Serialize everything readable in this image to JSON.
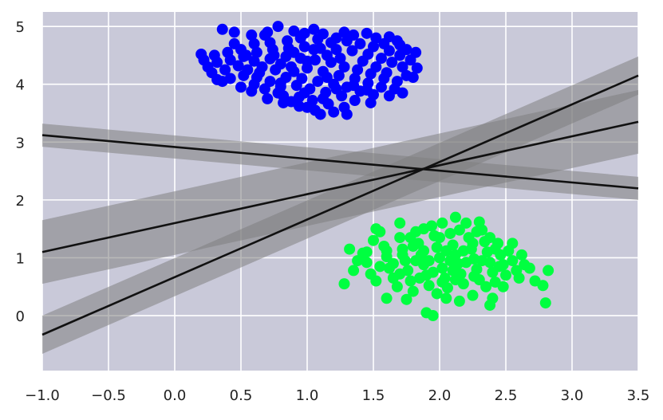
{
  "chart_data": {
    "type": "scatter",
    "title": "",
    "xlabel": "",
    "ylabel": "",
    "xlim": [
      -1.0,
      3.5
    ],
    "ylim": [
      -0.95,
      5.25
    ],
    "grid": true,
    "legend": "none",
    "x_ticks": [
      -1.0,
      -0.5,
      0.0,
      0.5,
      1.0,
      1.5,
      2.0,
      2.5,
      3.0,
      3.5
    ],
    "x_tick_labels": [
      "−1.0",
      "−0.5",
      "0.0",
      "0.5",
      "1.0",
      "1.5",
      "2.0",
      "2.5",
      "3.0",
      "3.5"
    ],
    "y_ticks": [
      0,
      1,
      2,
      3,
      4,
      5
    ],
    "y_tick_labels": [
      "0",
      "1",
      "2",
      "3",
      "4",
      "5"
    ],
    "colors": {
      "plot_background": "#c9c9d9",
      "grid": "#ffffff",
      "cluster_a": "#0000ff",
      "cluster_b": "#00ff40",
      "line": "#111111",
      "band": "#808080"
    },
    "series": [
      {
        "kind": "scatter",
        "color": "#0000ff",
        "points": [
          [
            0.36,
            4.95
          ],
          [
            0.45,
            4.9
          ],
          [
            0.58,
            4.85
          ],
          [
            0.7,
            4.9
          ],
          [
            0.78,
            5.0
          ],
          [
            0.9,
            4.92
          ],
          [
            0.98,
            4.88
          ],
          [
            1.05,
            4.95
          ],
          [
            1.12,
            4.87
          ],
          [
            1.22,
            4.8
          ],
          [
            1.35,
            4.85
          ],
          [
            1.45,
            4.88
          ],
          [
            1.52,
            4.8
          ],
          [
            1.58,
            4.7
          ],
          [
            1.68,
            4.75
          ],
          [
            1.75,
            4.6
          ],
          [
            1.82,
            4.55
          ],
          [
            1.7,
            4.5
          ],
          [
            1.62,
            4.58
          ],
          [
            1.5,
            4.65
          ],
          [
            1.4,
            4.7
          ],
          [
            1.3,
            4.75
          ],
          [
            1.18,
            4.72
          ],
          [
            1.08,
            4.78
          ],
          [
            0.95,
            4.8
          ],
          [
            0.85,
            4.75
          ],
          [
            0.72,
            4.72
          ],
          [
            0.6,
            4.7
          ],
          [
            0.5,
            4.6
          ],
          [
            0.4,
            4.55
          ],
          [
            0.3,
            4.5
          ],
          [
            0.2,
            4.52
          ],
          [
            0.22,
            4.42
          ],
          [
            0.32,
            4.38
          ],
          [
            0.42,
            4.42
          ],
          [
            0.52,
            4.48
          ],
          [
            0.62,
            4.55
          ],
          [
            0.74,
            4.6
          ],
          [
            0.86,
            4.62
          ],
          [
            0.98,
            4.65
          ],
          [
            1.1,
            4.62
          ],
          [
            1.22,
            4.6
          ],
          [
            1.34,
            4.58
          ],
          [
            1.46,
            4.52
          ],
          [
            1.56,
            4.45
          ],
          [
            1.64,
            4.38
          ],
          [
            1.72,
            4.3
          ],
          [
            1.83,
            4.28
          ],
          [
            1.75,
            4.15
          ],
          [
            1.68,
            4.05
          ],
          [
            1.58,
            4.1
          ],
          [
            1.48,
            4.18
          ],
          [
            1.38,
            4.25
          ],
          [
            1.28,
            4.3
          ],
          [
            1.18,
            4.38
          ],
          [
            1.06,
            4.42
          ],
          [
            0.95,
            4.45
          ],
          [
            0.84,
            4.48
          ],
          [
            0.72,
            4.44
          ],
          [
            0.6,
            4.4
          ],
          [
            0.48,
            4.32
          ],
          [
            0.38,
            4.25
          ],
          [
            0.28,
            4.2
          ],
          [
            0.32,
            4.08
          ],
          [
            0.42,
            4.1
          ],
          [
            0.52,
            4.15
          ],
          [
            0.64,
            4.2
          ],
          [
            0.76,
            4.25
          ],
          [
            0.88,
            4.3
          ],
          [
            1.0,
            4.28
          ],
          [
            1.12,
            4.22
          ],
          [
            1.24,
            4.15
          ],
          [
            1.36,
            4.1
          ],
          [
            1.46,
            4.02
          ],
          [
            1.56,
            3.95
          ],
          [
            1.66,
            3.92
          ],
          [
            1.72,
            3.85
          ],
          [
            1.62,
            3.8
          ],
          [
            1.5,
            3.82
          ],
          [
            1.4,
            3.88
          ],
          [
            1.3,
            3.95
          ],
          [
            1.2,
            4.0
          ],
          [
            1.08,
            4.05
          ],
          [
            0.96,
            4.1
          ],
          [
            0.84,
            4.12
          ],
          [
            0.72,
            4.05
          ],
          [
            0.6,
            4.0
          ],
          [
            0.5,
            3.95
          ],
          [
            0.58,
            3.88
          ],
          [
            0.68,
            3.92
          ],
          [
            0.8,
            3.96
          ],
          [
            0.92,
            3.98
          ],
          [
            1.02,
            3.92
          ],
          [
            1.14,
            3.86
          ],
          [
            1.26,
            3.8
          ],
          [
            1.36,
            3.72
          ],
          [
            1.48,
            3.68
          ],
          [
            1.28,
            3.6
          ],
          [
            1.16,
            3.66
          ],
          [
            1.04,
            3.72
          ],
          [
            0.94,
            3.78
          ],
          [
            0.82,
            3.8
          ],
          [
            0.7,
            3.75
          ],
          [
            0.82,
            3.68
          ],
          [
            0.94,
            3.62
          ],
          [
            1.06,
            3.55
          ],
          [
            1.1,
            3.48
          ],
          [
            1.3,
            3.48
          ],
          [
            1.2,
            3.52
          ],
          [
            0.88,
            3.7
          ],
          [
            0.78,
            3.85
          ],
          [
            1.0,
            3.6
          ],
          [
            1.12,
            3.75
          ],
          [
            0.66,
            4.3
          ],
          [
            0.9,
            4.55
          ],
          [
            1.15,
            4.5
          ],
          [
            1.42,
            4.4
          ],
          [
            0.55,
            4.25
          ],
          [
            0.25,
            4.3
          ],
          [
            0.45,
            4.7
          ],
          [
            0.68,
            4.85
          ],
          [
            1.28,
            4.9
          ],
          [
            1.62,
            4.82
          ],
          [
            1.78,
            4.42
          ],
          [
            1.8,
            4.12
          ],
          [
            1.0,
            4.4
          ],
          [
            0.8,
            4.35
          ],
          [
            1.25,
            4.45
          ],
          [
            0.62,
            4.12
          ],
          [
            1.35,
            3.98
          ],
          [
            0.98,
            3.85
          ],
          [
            1.52,
            4.3
          ],
          [
            0.36,
            4.05
          ],
          [
            1.7,
            4.68
          ],
          [
            0.8,
            4.02
          ],
          [
            1.45,
            3.9
          ],
          [
            1.15,
            4.12
          ],
          [
            0.9,
            4.22
          ],
          [
            0.54,
            4.5
          ],
          [
            1.22,
            3.92
          ],
          [
            1.05,
            4.6
          ],
          [
            0.75,
            4.5
          ],
          [
            1.6,
            4.2
          ]
        ]
      },
      {
        "kind": "scatter",
        "color": "#00ff40",
        "points": [
          [
            1.28,
            0.55
          ],
          [
            1.35,
            0.78
          ],
          [
            1.32,
            1.15
          ],
          [
            1.42,
            1.08
          ],
          [
            1.45,
            0.92
          ],
          [
            1.48,
            0.72
          ],
          [
            1.52,
            0.6
          ],
          [
            1.5,
            1.3
          ],
          [
            1.55,
            1.45
          ],
          [
            1.58,
            1.2
          ],
          [
            1.6,
            1.02
          ],
          [
            1.62,
            0.82
          ],
          [
            1.65,
            0.65
          ],
          [
            1.68,
            0.5
          ],
          [
            1.7,
            1.35
          ],
          [
            1.72,
            1.15
          ],
          [
            1.74,
            0.95
          ],
          [
            1.76,
            0.78
          ],
          [
            1.78,
            0.6
          ],
          [
            1.8,
            0.42
          ],
          [
            1.82,
            1.45
          ],
          [
            1.84,
            1.25
          ],
          [
            1.86,
            1.05
          ],
          [
            1.88,
            0.88
          ],
          [
            1.9,
            0.7
          ],
          [
            1.92,
            0.52
          ],
          [
            1.94,
            1.55
          ],
          [
            1.96,
            1.38
          ],
          [
            1.98,
            1.18
          ],
          [
            2.0,
            1.0
          ],
          [
            2.02,
            0.82
          ],
          [
            2.04,
            0.65
          ],
          [
            2.06,
            0.48
          ],
          [
            2.08,
            1.42
          ],
          [
            2.1,
            1.22
          ],
          [
            2.12,
            1.05
          ],
          [
            2.14,
            0.9
          ],
          [
            2.16,
            0.72
          ],
          [
            2.18,
            0.55
          ],
          [
            2.2,
            1.6
          ],
          [
            2.22,
            1.35
          ],
          [
            2.24,
            1.15
          ],
          [
            2.26,
            0.98
          ],
          [
            2.28,
            0.8
          ],
          [
            2.3,
            0.62
          ],
          [
            2.32,
            1.48
          ],
          [
            2.34,
            1.28
          ],
          [
            2.36,
            1.1
          ],
          [
            2.38,
            0.92
          ],
          [
            2.4,
            0.75
          ],
          [
            2.42,
            0.58
          ],
          [
            2.44,
            1.25
          ],
          [
            2.46,
            1.05
          ],
          [
            2.48,
            0.88
          ],
          [
            2.5,
            0.7
          ],
          [
            2.52,
            1.12
          ],
          [
            2.55,
            0.95
          ],
          [
            2.58,
            0.78
          ],
          [
            2.6,
            0.65
          ],
          [
            2.64,
            0.88
          ],
          [
            2.68,
            0.82
          ],
          [
            2.72,
            0.6
          ],
          [
            2.78,
            0.52
          ],
          [
            2.82,
            0.78
          ],
          [
            2.8,
            0.22
          ],
          [
            2.4,
            0.3
          ],
          [
            2.38,
            0.18
          ],
          [
            2.15,
            0.25
          ],
          [
            1.9,
            0.05
          ],
          [
            1.95,
            0.0
          ],
          [
            1.6,
            0.3
          ],
          [
            1.75,
            0.28
          ],
          [
            2.05,
            0.3
          ],
          [
            2.25,
            0.35
          ],
          [
            1.52,
            1.5
          ],
          [
            2.12,
            1.7
          ],
          [
            2.02,
            1.6
          ],
          [
            2.3,
            1.62
          ],
          [
            2.38,
            1.35
          ],
          [
            1.7,
            1.6
          ],
          [
            1.88,
            1.5
          ],
          [
            2.0,
            1.35
          ],
          [
            1.8,
            1.2
          ],
          [
            1.92,
            0.95
          ],
          [
            2.1,
            0.78
          ],
          [
            2.2,
            0.92
          ],
          [
            1.85,
            0.65
          ],
          [
            2.05,
            1.12
          ],
          [
            2.25,
            1.25
          ],
          [
            1.65,
            0.9
          ],
          [
            1.55,
            0.85
          ],
          [
            1.45,
            1.1
          ],
          [
            2.45,
            0.85
          ],
          [
            2.55,
            1.25
          ],
          [
            2.35,
            0.5
          ],
          [
            1.98,
            0.38
          ],
          [
            2.28,
            1.45
          ],
          [
            1.72,
            1.05
          ],
          [
            1.6,
            1.12
          ],
          [
            2.15,
            1.48
          ],
          [
            1.95,
            0.75
          ],
          [
            2.08,
            0.95
          ],
          [
            2.32,
            0.95
          ],
          [
            1.82,
            0.95
          ],
          [
            2.62,
            1.05
          ],
          [
            2.48,
            0.5
          ],
          [
            1.38,
            0.95
          ],
          [
            1.78,
            1.35
          ],
          [
            2.18,
            1.12
          ],
          [
            2.42,
            1.15
          ],
          [
            1.88,
            1.12
          ],
          [
            2.02,
            0.58
          ],
          [
            2.12,
            0.62
          ],
          [
            2.26,
            0.68
          ],
          [
            1.7,
            0.72
          ]
        ]
      },
      {
        "kind": "line",
        "color": "#111111",
        "band_halfwidth": 0.2,
        "points": [
          [
            -1.0,
            3.12
          ],
          [
            3.5,
            2.2
          ]
        ]
      },
      {
        "kind": "line",
        "color": "#111111",
        "band_halfwidth": 0.55,
        "points": [
          [
            -1.0,
            1.1
          ],
          [
            3.5,
            3.35
          ]
        ]
      },
      {
        "kind": "line",
        "color": "#111111",
        "band_halfwidth": 0.33,
        "points": [
          [
            -1.0,
            -0.33
          ],
          [
            3.5,
            4.15
          ]
        ]
      }
    ]
  }
}
